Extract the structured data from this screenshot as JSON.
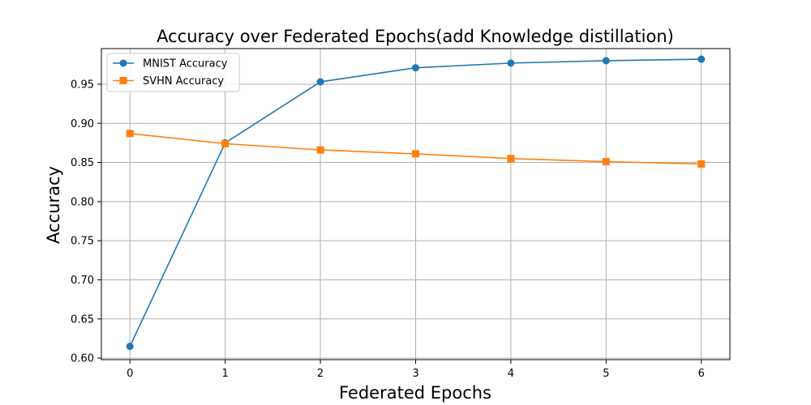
{
  "chart_data": {
    "type": "line",
    "title": "Accuracy over Federated Epochs(add Knowledge distillation)",
    "xlabel": "Federated Epochs",
    "ylabel": "Accuracy",
    "x": [
      0,
      1,
      2,
      3,
      4,
      5,
      6
    ],
    "x_ticks": [
      "0",
      "1",
      "2",
      "3",
      "4",
      "5",
      "6"
    ],
    "y_ticks": [
      "0.60",
      "0.65",
      "0.70",
      "0.75",
      "0.80",
      "0.85",
      "0.90",
      "0.95"
    ],
    "xlim": [
      -0.3,
      6.3
    ],
    "ylim": [
      0.598,
      0.9955
    ],
    "grid": true,
    "legend_position": "upper-left",
    "series": [
      {
        "name": "MNIST Accuracy",
        "color": "#1f77b4",
        "marker": "circle",
        "values": [
          0.615,
          0.875,
          0.953,
          0.971,
          0.977,
          0.98,
          0.982
        ]
      },
      {
        "name": "SVHN Accuracy",
        "color": "#ff7f0e",
        "marker": "square",
        "values": [
          0.887,
          0.874,
          0.866,
          0.861,
          0.855,
          0.851,
          0.848
        ]
      }
    ]
  }
}
